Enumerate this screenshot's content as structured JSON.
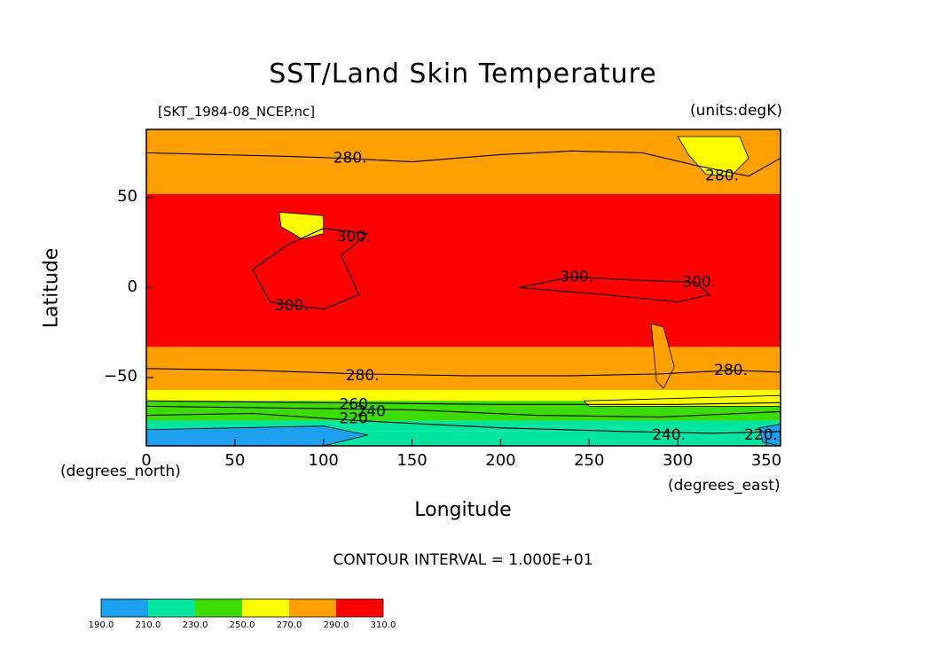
{
  "chart_data": {
    "type": "heatmap",
    "title": "SST/Land Skin Temperature",
    "subtitle_left": "[SKT_1984-08_NCEP.nc]",
    "subtitle_right": "(units:degK)",
    "xlabel": "Longitude",
    "ylabel": "Latitude",
    "x_units_label": "(degrees_east)",
    "y_units_label": "(degrees_north)",
    "contour_interval_label": "CONTOUR INTERVAL = 1.000E+01",
    "xlim": [
      0,
      358
    ],
    "ylim": [
      -88,
      88
    ],
    "x_ticks": [
      0,
      50,
      100,
      150,
      200,
      250,
      300,
      350
    ],
    "y_ticks": [
      50,
      0,
      -50
    ],
    "color_levels": [
      190,
      210,
      230,
      250,
      270,
      290,
      310
    ],
    "color_levels_labels": [
      "190.0",
      "210.0",
      "230.0",
      "250.0",
      "270.0",
      "290.0",
      "310.0"
    ],
    "colors": [
      "#1ea0f0",
      "#00e6a0",
      "#3cdc00",
      "#ffff00",
      "#ffa000",
      "#ff0000"
    ],
    "contour_labels": [
      {
        "text": "280.",
        "lon": 115,
        "lat": 72
      },
      {
        "text": "280.",
        "lon": 325,
        "lat": 62
      },
      {
        "text": "300.",
        "lon": 117,
        "lat": 28
      },
      {
        "text": "300.",
        "lon": 82,
        "lat": -10
      },
      {
        "text": "300.",
        "lon": 243,
        "lat": 6
      },
      {
        "text": "300.",
        "lon": 312,
        "lat": 3
      },
      {
        "text": "280.",
        "lon": 122,
        "lat": -49
      },
      {
        "text": "280.",
        "lon": 330,
        "lat": -46
      },
      {
        "text": "260",
        "lon": 117,
        "lat": -65
      },
      {
        "text": "240",
        "lon": 127,
        "lat": -69
      },
      {
        "text": "220",
        "lon": 117,
        "lat": -73
      },
      {
        "text": "240.",
        "lon": 295,
        "lat": -82
      },
      {
        "text": "220.",
        "lon": 347,
        "lat": -82
      }
    ]
  }
}
